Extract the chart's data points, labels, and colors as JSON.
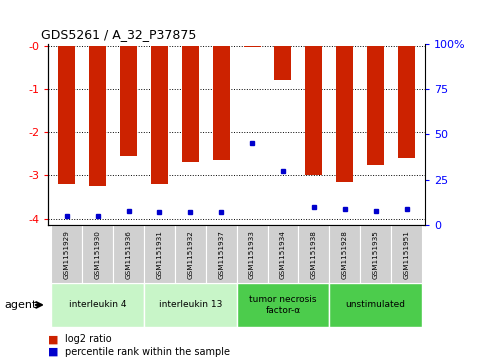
{
  "title": "GDS5261 / A_32_P37875",
  "samples": [
    "GSM1151929",
    "GSM1151930",
    "GSM1151936",
    "GSM1151931",
    "GSM1151932",
    "GSM1151937",
    "GSM1151933",
    "GSM1151934",
    "GSM1151938",
    "GSM1151928",
    "GSM1151935",
    "GSM1151951"
  ],
  "log2_ratio": [
    -3.2,
    -3.25,
    -2.55,
    -3.2,
    -2.7,
    -2.65,
    -0.02,
    -0.8,
    -3.0,
    -3.15,
    -2.75,
    -2.6
  ],
  "percentile_rank": [
    5,
    5,
    8,
    7,
    7,
    7,
    45,
    30,
    10,
    9,
    8,
    9
  ],
  "groups": [
    {
      "label": "interleukin 4",
      "start": 0,
      "end": 2,
      "color": "#c8f5c8"
    },
    {
      "label": "interleukin 13",
      "start": 3,
      "end": 5,
      "color": "#c8f5c8"
    },
    {
      "label": "tumor necrosis\nfactor-α",
      "start": 6,
      "end": 8,
      "color": "#4ccc4c"
    },
    {
      "label": "unstimulated",
      "start": 9,
      "end": 11,
      "color": "#4ccc4c"
    }
  ],
  "ylim": [
    -4.15,
    0.05
  ],
  "yticks": [
    0,
    -1,
    -2,
    -3,
    -4
  ],
  "ytick_labels": [
    "-0",
    "-1",
    "-2",
    "-3",
    "-4"
  ],
  "right_yticks_pct": [
    0,
    25,
    50,
    75,
    100
  ],
  "right_ytick_labels": [
    "0",
    "25",
    "50",
    "75",
    "100%"
  ],
  "bar_color": "#cc2200",
  "percentile_color": "#0000cc",
  "bar_width": 0.55,
  "plot_bg": "#ffffff",
  "label_bg": "#d0d0d0",
  "legend_items": [
    {
      "label": "log2 ratio",
      "color": "#cc2200"
    },
    {
      "label": "percentile rank within the sample",
      "color": "#0000cc"
    }
  ]
}
